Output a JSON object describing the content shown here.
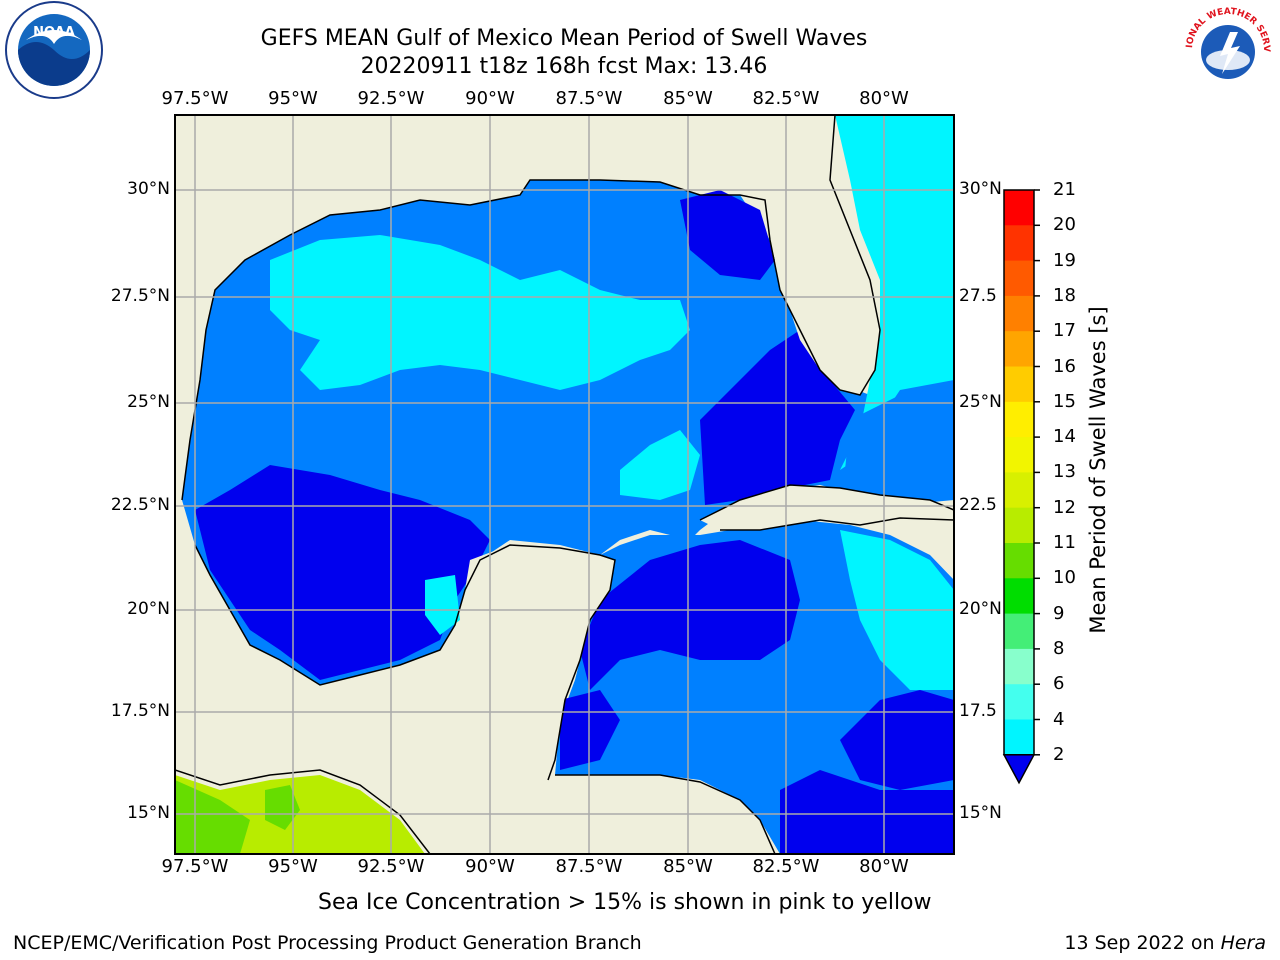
{
  "title": {
    "line1": "GEFS MEAN Gulf of Mexico Mean Period of Swell Waves",
    "line2": "20220911 t18z 168h fcst   Max: 13.46"
  },
  "axes": {
    "lon_labels": [
      "97.5°W",
      "95°W",
      "92.5°W",
      "90°W",
      "87.5°W",
      "85°W",
      "82.5°W",
      "80°W"
    ],
    "lat_labels_left": [
      "30°N",
      "27.5°N",
      "25°N",
      "22.5°N",
      "20°N",
      "17.5°N",
      "15°N"
    ],
    "lat_labels_right": [
      "30°N",
      "27.5",
      "25°N",
      "22.5",
      "20°N",
      "17.5",
      "15°N"
    ]
  },
  "colorbar": {
    "title": "Mean Period of Swell Waves [s]",
    "ticks": [
      "21",
      "20",
      "19",
      "18",
      "17",
      "16",
      "15",
      "14",
      "13",
      "12",
      "11",
      "10",
      "9",
      "8",
      "6",
      "4",
      "2"
    ],
    "colors": [
      "#ff0000",
      "#ff3300",
      "#ff5a00",
      "#ff8000",
      "#ffa500",
      "#ffcc00",
      "#ffee00",
      "#f2f500",
      "#d8f000",
      "#b8ec00",
      "#66dd00",
      "#00dd00",
      "#44ee77",
      "#88ffcc",
      "#44ffee",
      "#00f5ff",
      "#0080ff"
    ],
    "extend_color": "#0000ee"
  },
  "caption": "Sea Ice Concentration > 15% is shown in pink to yellow",
  "footer": {
    "left": "NCEP/EMC/Verification Post Processing Product Generation Branch",
    "right_date": "13 Sep 2022 on ",
    "right_host": "Hera"
  },
  "logos": {
    "left": "noaa-logo",
    "left_text": "NOAA",
    "right": "national-weather-service-logo",
    "right_text": "NATIONAL WEATHER SERVICE"
  },
  "map_colors": {
    "land": "#efefdc",
    "sea_deep": "#0000ee",
    "sea_mid": "#0080ff",
    "sea_light": "#00f5ff",
    "sea_cyan": "#44ffee",
    "grid": "#aaaaaa",
    "coast": "#000000",
    "swell_green": "#66dd00",
    "swell_yellowgreen": "#b8ec00"
  }
}
